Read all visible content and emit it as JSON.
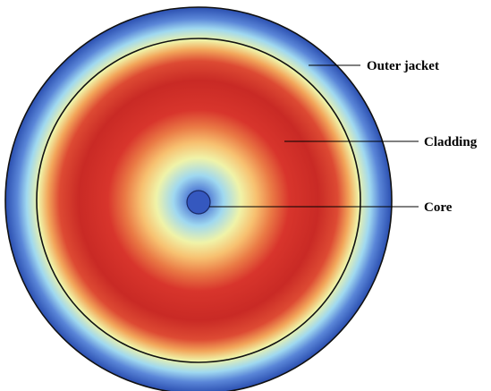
{
  "labels": {
    "outer_jacket": "Outer jacket",
    "cladding": "Cladding",
    "core": "Core"
  },
  "colors": {
    "deep_blue": "#2b4fb0",
    "mid_blue": "#5a86d8",
    "cyan": "#9fd8f0",
    "light_yellow": "#f0f3a8",
    "yellow": "#f7e07a",
    "orange": "#f2a55a",
    "red": "#d8352c",
    "dark_red": "#c92a25",
    "ring_stroke": "#111111",
    "leader_line": "#000000"
  }
}
